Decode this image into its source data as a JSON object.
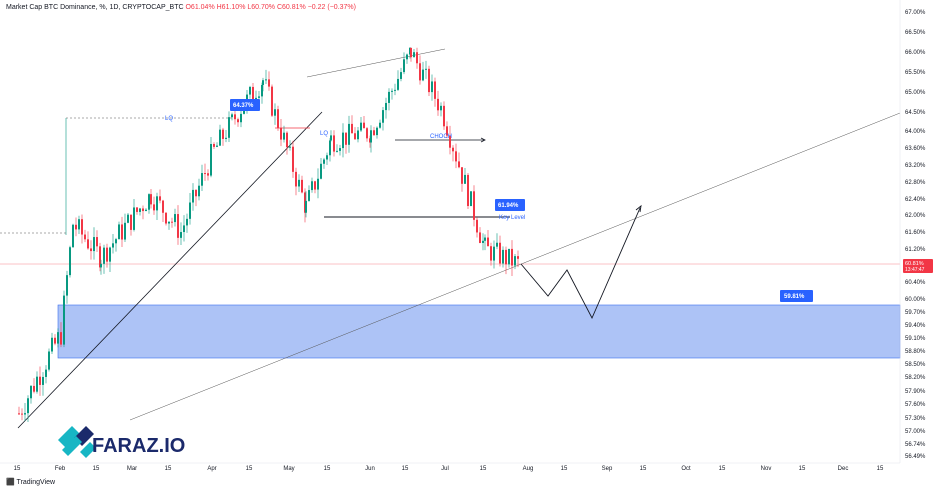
{
  "header": {
    "title": "Market Cap BTC Dominance, %, 1D, CRYPTOCAP_BTC",
    "o": "O61.04%",
    "h": "H61.10%",
    "l": "L60.70%",
    "c": "C60.81%",
    "change": "−0.22 (−0.37%)"
  },
  "price_axis": {
    "ticks": [
      "67.00%",
      "66.50%",
      "66.00%",
      "65.50%",
      "65.00%",
      "64.50%",
      "64.00%",
      "63.60%",
      "63.20%",
      "62.80%",
      "62.40%",
      "62.00%",
      "61.60%",
      "61.20%",
      "60.80%",
      "60.40%",
      "60.00%",
      "59.70%",
      "59.40%",
      "59.10%",
      "58.80%",
      "58.50%",
      "58.20%",
      "57.90%",
      "57.60%",
      "57.30%",
      "57.00%",
      "56.74%",
      "56.49%"
    ],
    "last_price": "60.81%",
    "countdown": "13:47:47"
  },
  "time_axis": {
    "ticks": [
      "15",
      "Feb",
      "15",
      "Mar",
      "15",
      "Apr",
      "15",
      "May",
      "15",
      "Jun",
      "15",
      "Jul",
      "15",
      "Aug",
      "15",
      "Sep",
      "15",
      "Oct",
      "15",
      "Nov",
      "15",
      "Dec",
      "15"
    ]
  },
  "annotations": {
    "lq_left": "LQ",
    "lq_right": "LQ",
    "choch": "CHOCH",
    "key_level": "Key Level",
    "label_high": "64.37%",
    "label_key": "61.94%",
    "label_target": "59.81%"
  },
  "logo": {
    "text": "FARAZ.IO"
  },
  "footer": {
    "brand": "TradingView"
  },
  "colors": {
    "up": "#089981",
    "down": "#f23645",
    "zone_fill": "#9fb8f5",
    "zone_stroke": "#3b6ef0",
    "label_bg": "#2962ff",
    "logo_teal": "#17b6c4",
    "logo_dark": "#1b2a6b"
  },
  "chart_data": {
    "type": "candlestick",
    "title": "Market Cap BTC Dominance, %, 1D, CRYPTOCAP_BTC",
    "xlabel": "",
    "ylabel": "",
    "ylim": [
      56.49,
      67.0
    ],
    "last_close": 60.81,
    "approx_close_path": [
      {
        "date": "Jan 15",
        "value": 57.4
      },
      {
        "date": "Feb 1",
        "value": 59.2
      },
      {
        "date": "Feb 8",
        "value": 61.8
      },
      {
        "date": "Feb 20",
        "value": 61.0
      },
      {
        "date": "Mar 10",
        "value": 62.5
      },
      {
        "date": "Mar 25",
        "value": 61.6
      },
      {
        "date": "Apr 10",
        "value": 63.4
      },
      {
        "date": "Apr 28",
        "value": 64.6
      },
      {
        "date": "May 8",
        "value": 65.3
      },
      {
        "date": "May 16",
        "value": 62.2
      },
      {
        "date": "Jun 1",
        "value": 63.8
      },
      {
        "date": "Jun 15",
        "value": 64.0
      },
      {
        "date": "Jun 28",
        "value": 66.0
      },
      {
        "date": "Jul 10",
        "value": 64.6
      },
      {
        "date": "Jul 18",
        "value": 61.2
      },
      {
        "date": "Jul 25",
        "value": 60.81
      }
    ],
    "zone": {
      "label": "59.81%",
      "from": 58.65,
      "to": 59.81
    },
    "key_level": 61.94,
    "liquidity_level": 64.37
  }
}
